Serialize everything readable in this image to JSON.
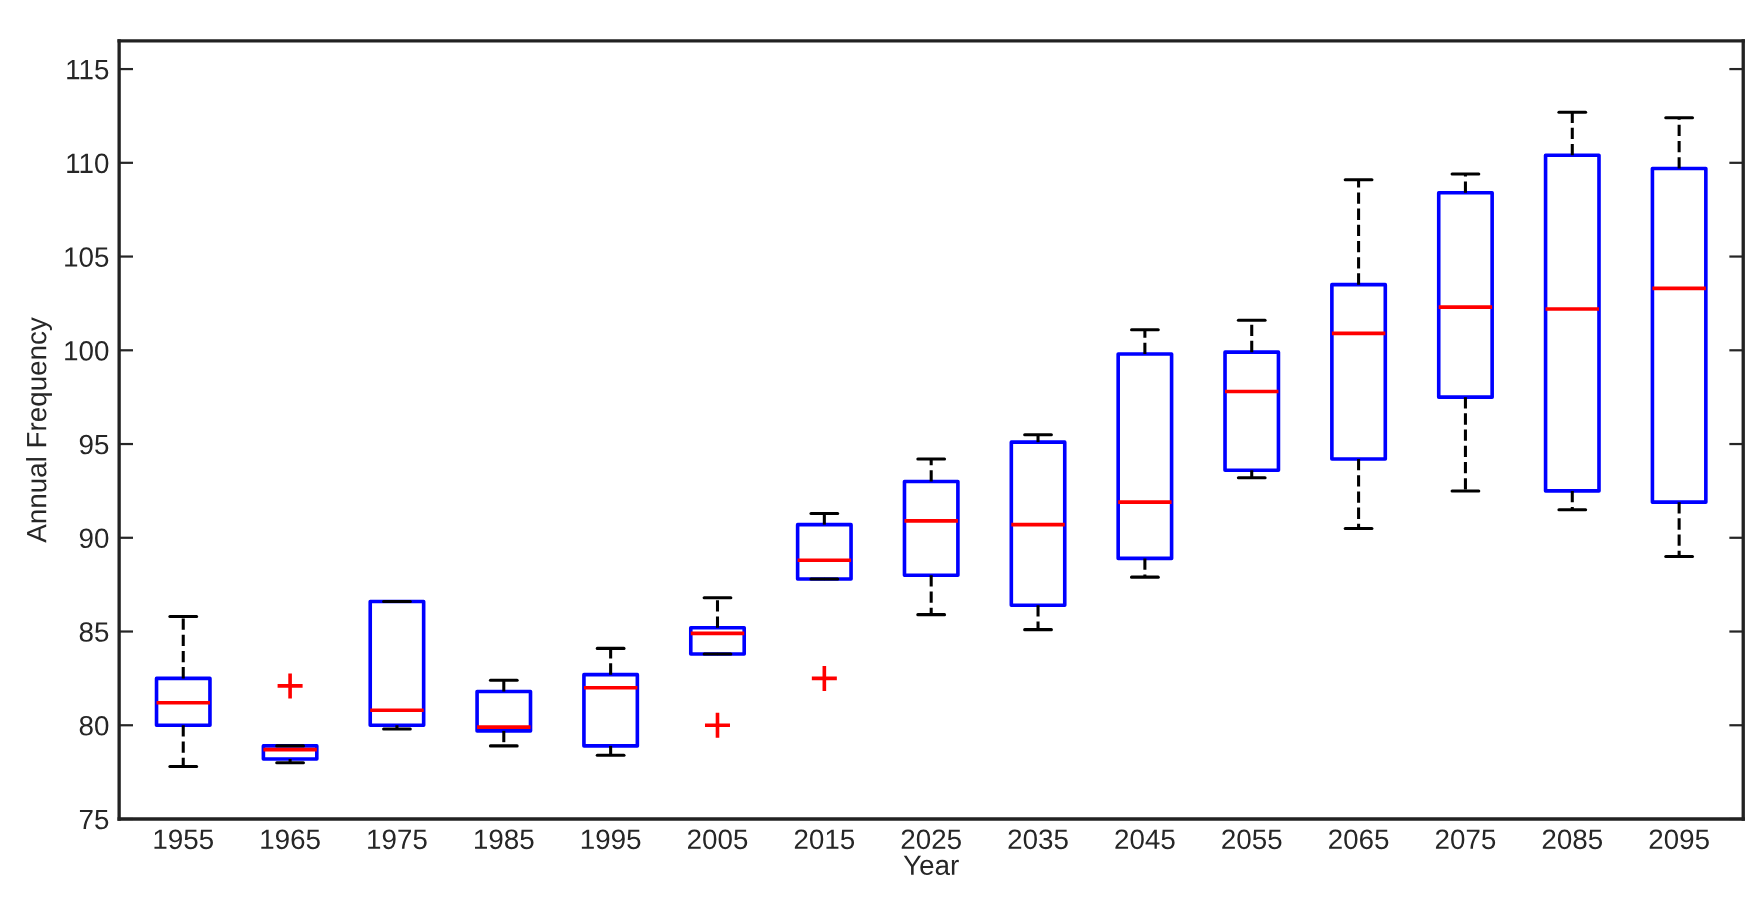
{
  "chart_data": {
    "type": "box",
    "xlabel": "Year",
    "ylabel": "Annual Frequency",
    "categories": [
      "1955",
      "1965",
      "1975",
      "1985",
      "1995",
      "2005",
      "2015",
      "2025",
      "2035",
      "2045",
      "2055",
      "2065",
      "2075",
      "2085",
      "2095"
    ],
    "ylim": [
      75,
      116.5
    ],
    "yticks": [
      75,
      80,
      85,
      90,
      95,
      100,
      105,
      110,
      115
    ],
    "grid": false,
    "line_style": "dashed",
    "marker": "cross",
    "series": [
      {
        "color": "#0000ff",
        "boxes": [
          {
            "low": 77.8,
            "q1": 80.0,
            "median": 81.2,
            "q3": 82.5,
            "high": 85.8
          },
          {
            "low": 78.0,
            "q1": 78.2,
            "median": 78.7,
            "q3": 78.9,
            "high": 78.9,
            "outliers": [
              82.1
            ]
          },
          {
            "low": 79.8,
            "q1": 80.0,
            "median": 80.8,
            "q3": 86.6,
            "high": 86.6
          },
          {
            "low": 78.9,
            "q1": 79.7,
            "median": 79.9,
            "q3": 81.8,
            "high": 82.4
          },
          {
            "low": 78.4,
            "q1": 78.9,
            "median": 82.0,
            "q3": 82.7,
            "high": 84.1
          },
          {
            "low": 83.8,
            "q1": 83.8,
            "median": 84.9,
            "q3": 85.2,
            "high": 86.8,
            "outliers": [
              80.0
            ]
          },
          {
            "low": 87.8,
            "q1": 87.8,
            "median": 88.8,
            "q3": 90.7,
            "high": 91.3,
            "outliers": [
              82.5
            ]
          },
          {
            "low": 85.9,
            "q1": 88.0,
            "median": 90.9,
            "q3": 93.0,
            "high": 94.2
          },
          {
            "low": 85.1,
            "q1": 86.4,
            "median": 90.7,
            "q3": 95.1,
            "high": 95.5
          },
          {
            "low": 87.9,
            "q1": 88.9,
            "median": 91.9,
            "q3": 99.8,
            "high": 101.1
          },
          {
            "low": 93.2,
            "q1": 93.6,
            "median": 97.8,
            "q3": 99.9,
            "high": 101.6
          },
          {
            "low": 90.5,
            "q1": 94.2,
            "median": 100.9,
            "q3": 103.5,
            "high": 109.1
          },
          {
            "low": 92.5,
            "q1": 97.5,
            "median": 102.3,
            "q3": 108.4,
            "high": 109.4
          },
          {
            "low": 91.5,
            "q1": 92.5,
            "median": 102.2,
            "q3": 110.4,
            "high": 112.7
          },
          {
            "low": 89.0,
            "q1": 91.9,
            "median": 103.3,
            "q3": 109.7,
            "high": 112.4
          }
        ]
      }
    ]
  }
}
